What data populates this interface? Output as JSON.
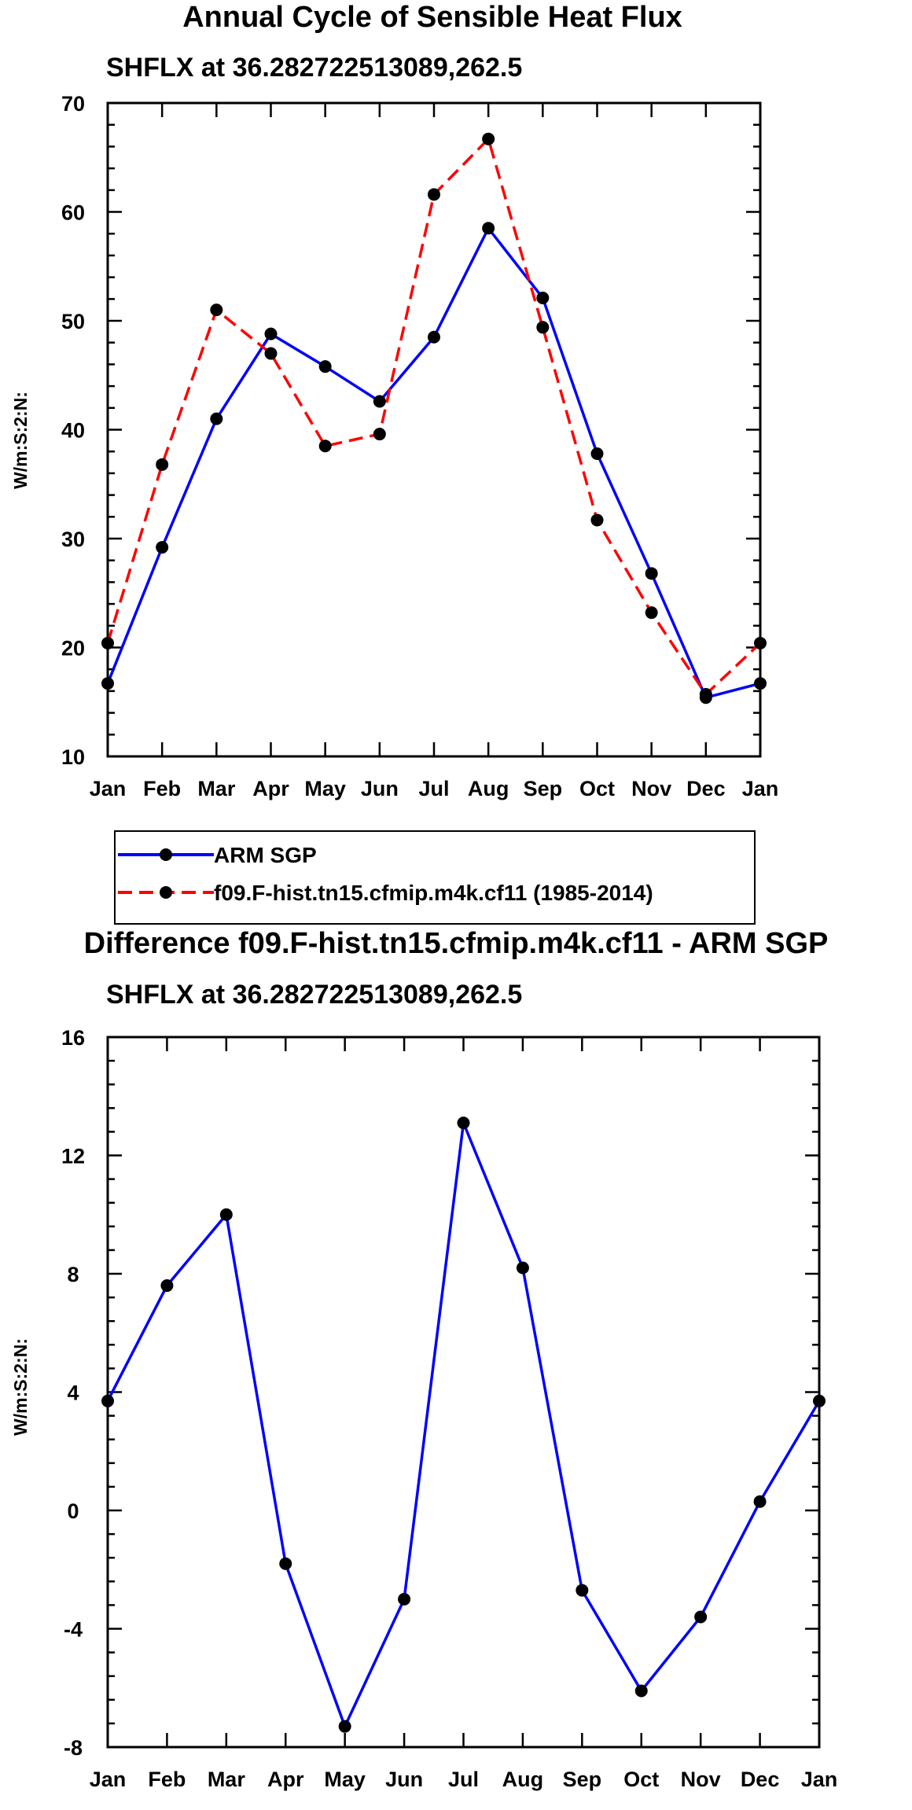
{
  "chart_data": [
    {
      "type": "line",
      "title": "Annual Cycle of Sensible Heat Flux",
      "subtitle": "SHFLX at 36.282722513089,262.5",
      "xlabel": "",
      "ylabel": "W/m:S:2:N:",
      "categories": [
        "Jan",
        "Feb",
        "Mar",
        "Apr",
        "May",
        "Jun",
        "Jul",
        "Aug",
        "Sep",
        "Oct",
        "Nov",
        "Dec",
        "Jan"
      ],
      "ylim": [
        10,
        70
      ],
      "yticks": [
        10,
        20,
        30,
        40,
        50,
        60,
        70
      ],
      "ytick_labels": [
        "10",
        "20",
        "30",
        "40",
        "50",
        "60",
        "70"
      ],
      "legend": "below",
      "series": [
        {
          "name": "ARM SGP",
          "color": "#0000ff",
          "style": "solid",
          "values": [
            16.7,
            29.2,
            41.0,
            48.8,
            45.8,
            42.6,
            48.5,
            58.5,
            52.1,
            37.8,
            26.8,
            15.4,
            16.7
          ]
        },
        {
          "name": "f09.F-hist.tn15.cfmip.m4k.cf11 (1985-2014)",
          "color": "#ff0000",
          "style": "dashed",
          "values": [
            20.4,
            36.8,
            51.0,
            47.0,
            38.5,
            39.6,
            61.6,
            66.7,
            49.4,
            31.7,
            23.2,
            15.7,
            20.4
          ]
        }
      ]
    },
    {
      "type": "line",
      "title": "Difference f09.F-hist.tn15.cfmip.m4k.cf11 - ARM SGP",
      "subtitle": "SHFLX at 36.282722513089,262.5",
      "xlabel": "",
      "ylabel": "W/m:S:2:N:",
      "categories": [
        "Jan",
        "Feb",
        "Mar",
        "Apr",
        "May",
        "Jun",
        "Jul",
        "Aug",
        "Sep",
        "Oct",
        "Nov",
        "Dec",
        "Jan"
      ],
      "ylim": [
        -8,
        16
      ],
      "yticks": [
        -8,
        -4,
        0,
        4,
        8,
        12,
        16
      ],
      "ytick_labels": [
        "-8",
        "-4",
        "0",
        "4",
        "8",
        "12",
        "16"
      ],
      "series": [
        {
          "name": "Difference",
          "color": "#0000ff",
          "style": "solid",
          "values": [
            3.7,
            7.6,
            10.0,
            -1.8,
            -7.3,
            -3.0,
            13.1,
            8.2,
            -2.7,
            -6.1,
            -3.6,
            0.3,
            3.7
          ]
        }
      ]
    }
  ]
}
